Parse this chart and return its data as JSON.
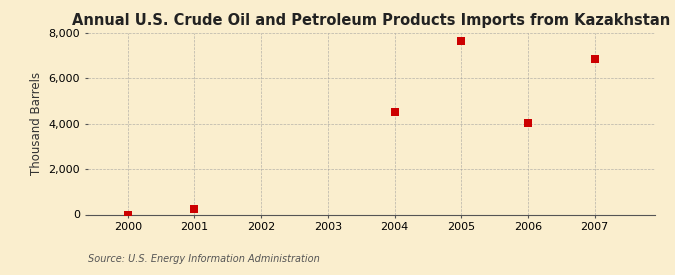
{
  "title": "Annual U.S. Crude Oil and Petroleum Products Imports from Kazakhstan",
  "ylabel": "Thousand Barrels",
  "source": "Source: U.S. Energy Information Administration",
  "background_color": "#faeece",
  "years": [
    2000,
    2001,
    2004,
    2005,
    2006,
    2007
  ],
  "values": [
    0,
    230,
    4500,
    7630,
    4050,
    6870
  ],
  "marker_color": "#cc0000",
  "marker_size": 36,
  "xlim": [
    1999.4,
    2007.9
  ],
  "ylim": [
    0,
    8000
  ],
  "yticks": [
    0,
    2000,
    4000,
    6000,
    8000
  ],
  "xticks": [
    2000,
    2001,
    2002,
    2003,
    2004,
    2005,
    2006,
    2007
  ],
  "grid_color": "#999999",
  "grid_style": "--",
  "title_fontsize": 10.5,
  "label_fontsize": 8.5,
  "tick_fontsize": 8,
  "source_fontsize": 7
}
